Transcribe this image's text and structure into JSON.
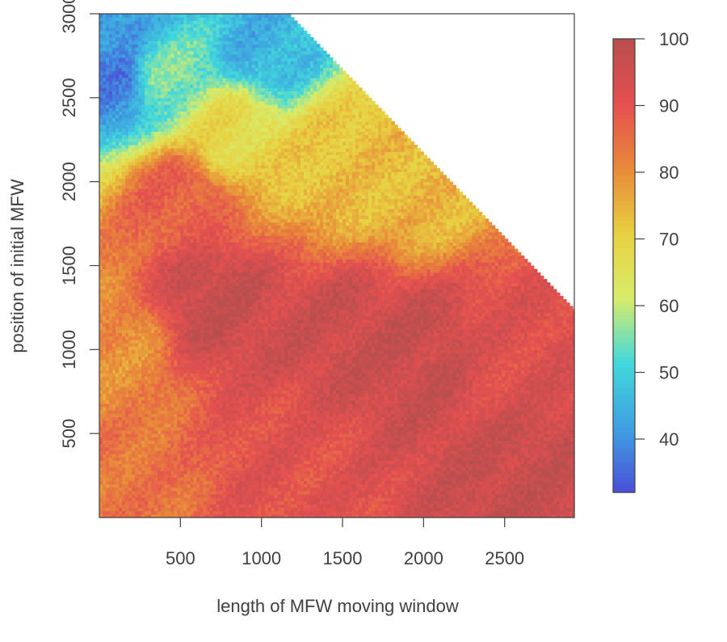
{
  "chart_data": {
    "type": "heatmap",
    "xlabel": "length of MFW moving window",
    "ylabel": "position of initial MFW",
    "xlim": [
      0,
      2930
    ],
    "ylim": [
      0,
      3000
    ],
    "x_ticks": [
      500,
      1000,
      1500,
      2000,
      2500
    ],
    "y_ticks": [
      500,
      1000,
      1500,
      2000,
      2500,
      3000
    ],
    "x_tick_labels": [
      "500",
      "1000",
      "1500",
      "2000",
      "2500"
    ],
    "y_tick_labels": [
      "500",
      "1000",
      "1500",
      "2000",
      "2500",
      "3000"
    ],
    "colorbar": {
      "range": [
        32,
        100
      ],
      "ticks": [
        40,
        50,
        60,
        70,
        80,
        90,
        100
      ],
      "tick_labels": [
        "40",
        "50",
        "60",
        "70",
        "80",
        "90",
        "100"
      ],
      "colors": [
        "#4a4fd8",
        "#3fa0e0",
        "#41d8dc",
        "#d8ec6a",
        "#e8d040",
        "#e88a3a",
        "#e55050",
        "#b84e4e"
      ]
    },
    "coverage_boundary": "x + y <= 4150",
    "landmarks": [
      {
        "x": 100,
        "y": 2950,
        "value": 40
      },
      {
        "x": 100,
        "y": 2600,
        "value": 38
      },
      {
        "x": 400,
        "y": 2650,
        "value": 55
      },
      {
        "x": 1000,
        "y": 2800,
        "value": 45
      },
      {
        "x": 800,
        "y": 2300,
        "value": 68
      },
      {
        "x": 1500,
        "y": 2100,
        "value": 73
      },
      {
        "x": 2000,
        "y": 1950,
        "value": 74
      },
      {
        "x": 500,
        "y": 1900,
        "value": 88
      },
      {
        "x": 700,
        "y": 1300,
        "value": 97
      },
      {
        "x": 1500,
        "y": 1100,
        "value": 96
      },
      {
        "x": 2000,
        "y": 1000,
        "value": 97
      },
      {
        "x": 2500,
        "y": 1000,
        "value": 92
      },
      {
        "x": 100,
        "y": 1000,
        "value": 80
      },
      {
        "x": 100,
        "y": 200,
        "value": 84
      },
      {
        "x": 1200,
        "y": 300,
        "value": 91
      },
      {
        "x": 2700,
        "y": 200,
        "value": 97
      }
    ]
  }
}
